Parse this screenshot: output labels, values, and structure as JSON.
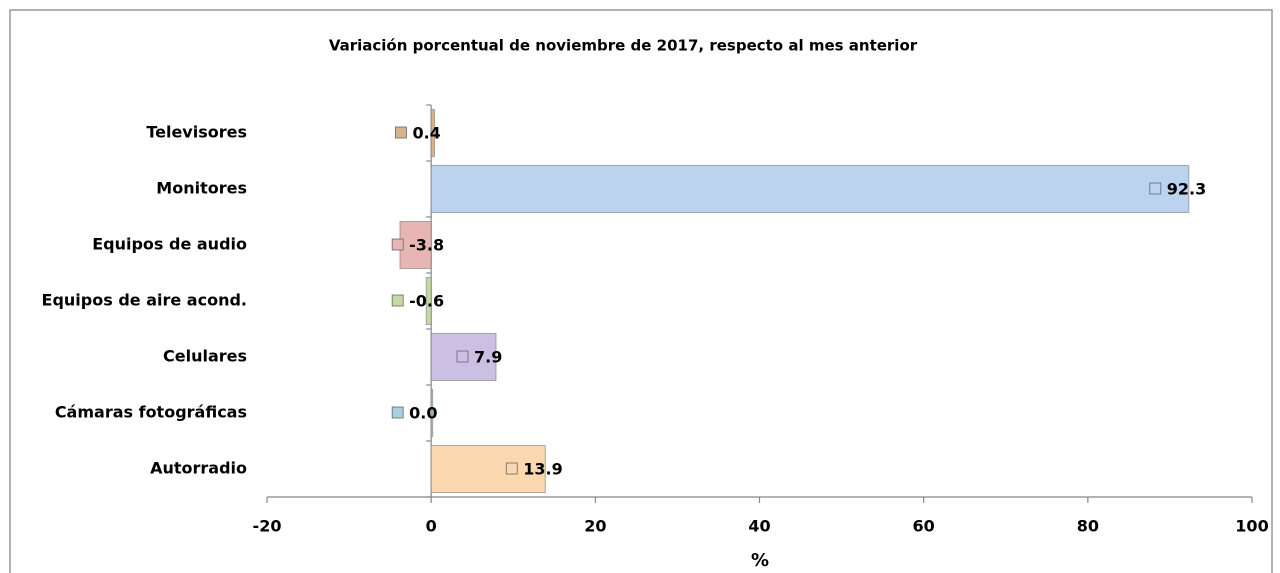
{
  "chart_data": {
    "type": "bar",
    "orientation": "horizontal",
    "title": "Variación porcentual de noviembre de 2017, respecto al mes anterior",
    "categories": [
      "Televisores",
      "Monitores",
      "Equipos de audio",
      "Equipos de aire acond.",
      "Celulares",
      "Cámaras fotográficas",
      "Autorradio"
    ],
    "values": [
      0.4,
      92.3,
      -3.8,
      -0.6,
      7.9,
      0.0,
      13.9
    ],
    "value_labels": [
      "0.4",
      "92.3",
      "-3.8",
      "-0.6",
      "7.9",
      "0.0",
      "13.9"
    ],
    "colors": [
      "#d9b38c",
      "#bcd3f0",
      "#e8b4b4",
      "#c6d9a2",
      "#cbbfe3",
      "#a9d1dd",
      "#fcd8ae"
    ],
    "xlabel": "%",
    "xlim": [
      -20,
      100
    ],
    "xticks": [
      -20,
      0,
      20,
      40,
      60,
      80,
      100
    ]
  }
}
